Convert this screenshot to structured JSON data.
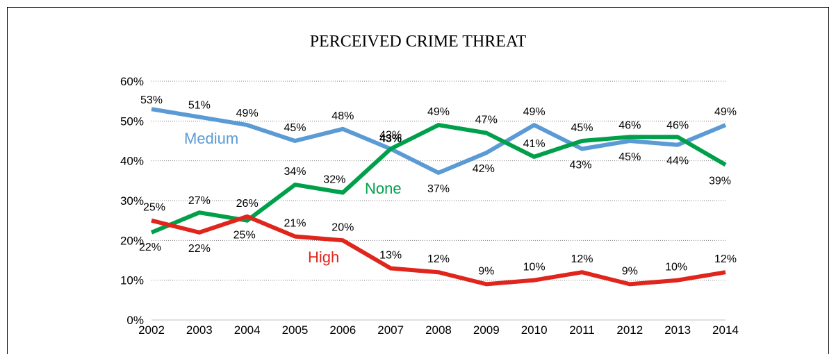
{
  "chart_data": {
    "type": "line",
    "title": "PERCEIVED CRIME THREAT",
    "categories": [
      "2002",
      "2003",
      "2004",
      "2005",
      "2006",
      "2007",
      "2008",
      "2009",
      "2010",
      "2011",
      "2012",
      "2013",
      "2014"
    ],
    "y_ticks": [
      "0%",
      "10%",
      "20%",
      "30%",
      "40%",
      "50%",
      "60%"
    ],
    "ylim": [
      0,
      60
    ],
    "grid": "horizontal dotted",
    "series": [
      {
        "name": "Medium",
        "color": "#5b9bd5",
        "values": [
          53,
          51,
          49,
          45,
          48,
          43,
          37,
          42,
          49,
          43,
          45,
          44,
          49
        ],
        "labels": [
          "53%",
          "51%",
          "49%",
          "45%",
          "48%",
          "43%",
          "37%",
          "42%",
          "49%",
          "43%",
          "45%",
          "44%",
          "49%"
        ]
      },
      {
        "name": "None",
        "color": "#00a04b",
        "values": [
          22,
          27,
          25,
          34,
          32,
          43,
          49,
          47,
          41,
          45,
          46,
          46,
          39
        ],
        "labels": [
          "22%",
          "27%",
          "25%",
          "34%",
          "32%",
          "43%",
          "49%",
          "47%",
          "41%",
          "45%",
          "46%",
          "46%",
          "39%"
        ]
      },
      {
        "name": "High",
        "color": "#e0261c",
        "values": [
          25,
          22,
          26,
          21,
          20,
          13,
          12,
          9,
          10,
          12,
          9,
          10,
          12
        ],
        "labels": [
          "25%",
          "22%",
          "26%",
          "21%",
          "20%",
          "13%",
          "12%",
          "9%",
          "10%",
          "12%",
          "9%",
          "10%",
          "12%"
        ]
      }
    ]
  }
}
